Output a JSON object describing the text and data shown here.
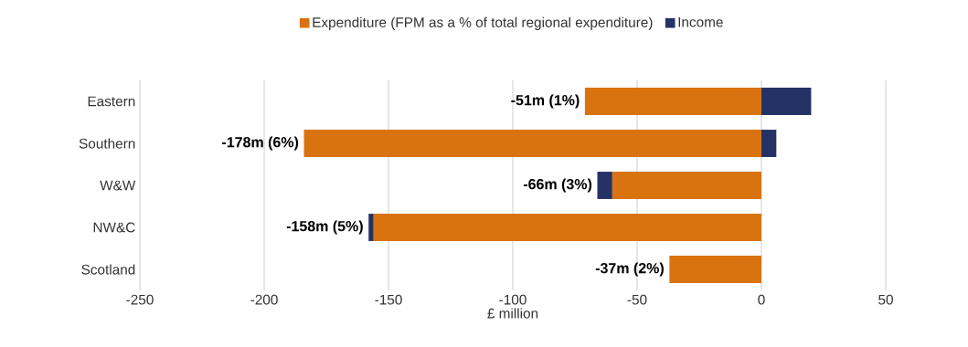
{
  "chart_data": {
    "type": "bar",
    "orientation": "horizontal",
    "stacked": true,
    "categories": [
      "Eastern",
      "Southern",
      "W&W",
      "NW&C",
      "Scotland"
    ],
    "series": [
      {
        "name": "Expenditure (FPM as a % of total regional expenditure)",
        "color": "#d97310",
        "values": [
          -71,
          -184,
          -60,
          -156,
          -37
        ]
      },
      {
        "name": "Income",
        "color": "#253266",
        "values": [
          20,
          6,
          -6,
          -2,
          0
        ]
      }
    ],
    "totals": [
      "-51m (1%)",
      "-178m (6%)",
      "-66m (3%)",
      "-158m (5%)",
      "-37m (2%)"
    ],
    "xlim": [
      -250,
      50
    ],
    "xticks": [
      -250,
      -200,
      -150,
      -100,
      -50,
      0,
      50
    ],
    "xlabel": "£ million",
    "grid": "x",
    "legend": "top"
  }
}
